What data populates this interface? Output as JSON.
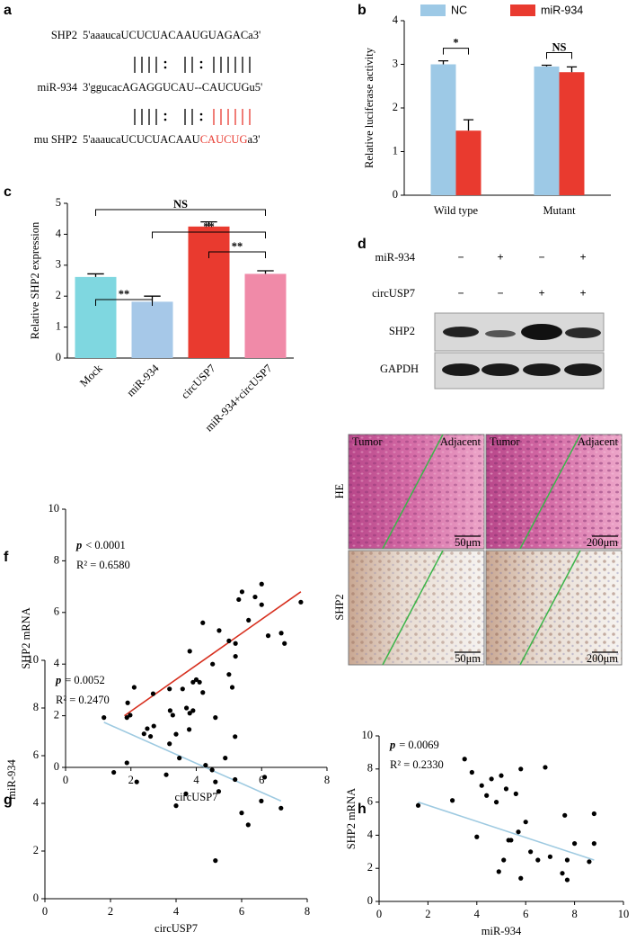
{
  "panel_a": {
    "label": "a",
    "rows": [
      {
        "name": "SHP2",
        "sequence": "5'aaaucaUCUCUACAAUGUAGACa3'"
      },
      {
        "name": "miR-934",
        "sequence": "3'ggucacAGAGGUCAU--CAUCUGu5'"
      },
      {
        "name": "mu SHP2",
        "sequence": "5'aaaucaUCUCUACAAU",
        "mutation": "CAUCUG",
        "end": "a3'"
      }
    ]
  },
  "panel_d": {
    "label": "d",
    "treatments": [
      {
        "name": "miR-934",
        "signs": [
          "−",
          "+",
          "−",
          "+"
        ],
        "sign_colors": [
          "#6db3e0",
          "#e8392f",
          "#6db3e0",
          "#e8392f"
        ]
      },
      {
        "name": "circUSP7",
        "signs": [
          "−",
          "−",
          "+",
          "+"
        ],
        "sign_colors": [
          "#6db3e0",
          "#6db3e0",
          "#e8392f",
          "#e8392f"
        ]
      }
    ],
    "bands": [
      "SHP2",
      "GAPDH"
    ]
  },
  "panel_e": {
    "label": "e",
    "columns": [
      "Tumor",
      "Adjacent"
    ],
    "rows": [
      {
        "name": "HE",
        "scale_bars": [
          "50μm",
          "200μm"
        ]
      },
      {
        "name": "SHP2",
        "scale_bars": [
          "50μm",
          "200μm"
        ]
      }
    ]
  },
  "chart_data": [
    {
      "type": "bar",
      "label": "b",
      "ylabel": "Relative luciferase activity",
      "categories": [
        "Wild type",
        "Mutant"
      ],
      "series": [
        {
          "name": "NC",
          "color": "#9dc9e6",
          "values": [
            3.0,
            2.95
          ],
          "errors": [
            0.08,
            0.03
          ]
        },
        {
          "name": "miR-934",
          "color": "#e93a2f",
          "values": [
            1.48,
            2.82
          ],
          "errors": [
            0.25,
            0.12
          ]
        }
      ],
      "ylim": [
        0,
        4
      ],
      "yticks": [
        0,
        1,
        2,
        3,
        4
      ],
      "legend": "top",
      "annotations": [
        {
          "text": "*",
          "category": 0
        },
        {
          "text": "NS",
          "category": 1
        }
      ]
    },
    {
      "type": "bar",
      "label": "c",
      "ylabel": "Relative SHP2 expression",
      "categories": [
        "Mock",
        "miR-934",
        "circUSP7",
        "miR-934+circUSP7"
      ],
      "values": [
        2.62,
        1.82,
        4.25,
        2.72
      ],
      "errors": [
        0.1,
        0.18,
        0.15,
        0.1
      ],
      "colors": [
        "#7fd7e0",
        "#a6c8e8",
        "#e93a2f",
        "#f08aa8"
      ],
      "ylim": [
        0,
        5
      ],
      "yticks": [
        0,
        1,
        2,
        3,
        4,
        5
      ],
      "annotations": [
        {
          "text": "NS",
          "from": 0,
          "to": 3
        },
        {
          "text": "**",
          "from": 1,
          "to": 3
        },
        {
          "text": "**",
          "from": 2,
          "to": 3
        },
        {
          "text": "**",
          "from": 0,
          "to": 1
        }
      ]
    },
    {
      "type": "scatter",
      "label": "f",
      "xlabel": "circUSP7",
      "ylabel": "SHP2 mRNA",
      "color": "#000000",
      "x": [
        1.9,
        2.1,
        2.4,
        2.5,
        2.6,
        2.7,
        3.2,
        3.7,
        3.8,
        3.8,
        3.9,
        3.9,
        4.0,
        4.1,
        4.2,
        4.2,
        4.5,
        4.7,
        5.0,
        5.0,
        5.1,
        5.2,
        5.2,
        5.3,
        5.4,
        5.6,
        5.8,
        6.0,
        6.0,
        6.2,
        6.6,
        6.7,
        7.2
      ],
      "y": [
        2.5,
        3.1,
        1.3,
        1.5,
        1.2,
        1.6,
        2.2,
        2.3,
        4.5,
        2.1,
        2.2,
        3.3,
        3.4,
        3.3,
        5.6,
        2.9,
        4.0,
        5.3,
        3.6,
        4.9,
        3.1,
        4.8,
        4.3,
        6.5,
        6.8,
        5.7,
        6.6,
        7.1,
        6.3,
        5.1,
        5.2,
        4.8,
        6.4
      ],
      "fit": {
        "x": [
          1.8,
          7.2
        ],
        "y": [
          2.0,
          6.8
        ],
        "color": "#d7301f"
      },
      "xlim": [
        0,
        8
      ],
      "ylim": [
        0,
        10
      ],
      "xticks": [
        0,
        2,
        4,
        6,
        8
      ],
      "yticks": [
        0,
        2,
        4,
        6,
        8,
        10
      ],
      "p_label": "p",
      "p_value": "< 0.0001",
      "r2": "R² = 0.6580"
    },
    {
      "type": "scatter",
      "label": "g",
      "xlabel": "circUSP7",
      "ylabel": "miR-934",
      "color": "#000000",
      "x": [
        1.8,
        2.1,
        2.5,
        2.5,
        2.6,
        2.8,
        3.3,
        3.7,
        3.8,
        3.8,
        3.9,
        4.0,
        4.0,
        4.1,
        4.2,
        4.3,
        4.4,
        4.9,
        5.1,
        5.2,
        5.2,
        5.2,
        5.3,
        5.5,
        5.8,
        5.8,
        6.0,
        6.2,
        6.6,
        6.7,
        7.2
      ],
      "y": [
        7.6,
        5.3,
        5.7,
        7.6,
        7.7,
        4.9,
        8.6,
        5.2,
        8.8,
        6.5,
        7.7,
        6.9,
        3.9,
        5.9,
        8.8,
        4.4,
        7.1,
        5.6,
        5.4,
        7.6,
        4.9,
        1.6,
        4.5,
        5.9,
        6.8,
        5.0,
        3.6,
        3.1,
        4.1,
        5.1,
        3.8
      ],
      "fit": {
        "x": [
          1.8,
          7.2
        ],
        "y": [
          7.4,
          4.1
        ],
        "color": "#9ecae1"
      },
      "xlim": [
        0,
        8
      ],
      "ylim": [
        0,
        10
      ],
      "xticks": [
        0,
        2,
        4,
        6,
        8
      ],
      "yticks": [
        0,
        2,
        4,
        6,
        8,
        10
      ],
      "p_label": "p",
      "p_value": "= 0.0052",
      "r2": "R² = 0.2470"
    },
    {
      "type": "scatter",
      "label": "h",
      "xlabel": "miR-934",
      "ylabel": "SHP2 mRNA",
      "color": "#000000",
      "x": [
        1.6,
        3.0,
        3.5,
        3.8,
        4.0,
        4.2,
        4.4,
        4.6,
        4.8,
        4.9,
        5.0,
        5.1,
        5.2,
        5.3,
        5.4,
        5.6,
        5.7,
        5.8,
        5.8,
        6.0,
        6.2,
        6.5,
        6.8,
        7.0,
        7.5,
        7.6,
        7.7,
        7.7,
        8.0,
        8.6,
        8.8,
        8.8
      ],
      "y": [
        5.8,
        6.1,
        8.6,
        7.8,
        3.9,
        7.0,
        6.4,
        7.4,
        6.0,
        1.8,
        7.6,
        2.5,
        6.8,
        3.7,
        3.7,
        6.5,
        4.2,
        8.0,
        1.4,
        4.8,
        3.0,
        2.5,
        8.1,
        2.7,
        1.7,
        5.2,
        1.3,
        2.5,
        3.5,
        2.4,
        5.3,
        3.5
      ],
      "fit": {
        "x": [
          1.6,
          8.8
        ],
        "y": [
          6.0,
          2.5
        ],
        "color": "#9ecae1"
      },
      "xlim": [
        0,
        10
      ],
      "ylim": [
        0,
        10
      ],
      "xticks": [
        0,
        2,
        4,
        6,
        8,
        10
      ],
      "yticks": [
        0,
        2,
        4,
        6,
        8,
        10
      ],
      "p_label": "p",
      "p_value": "= 0.0069",
      "r2": "R² = 0.2330"
    }
  ]
}
